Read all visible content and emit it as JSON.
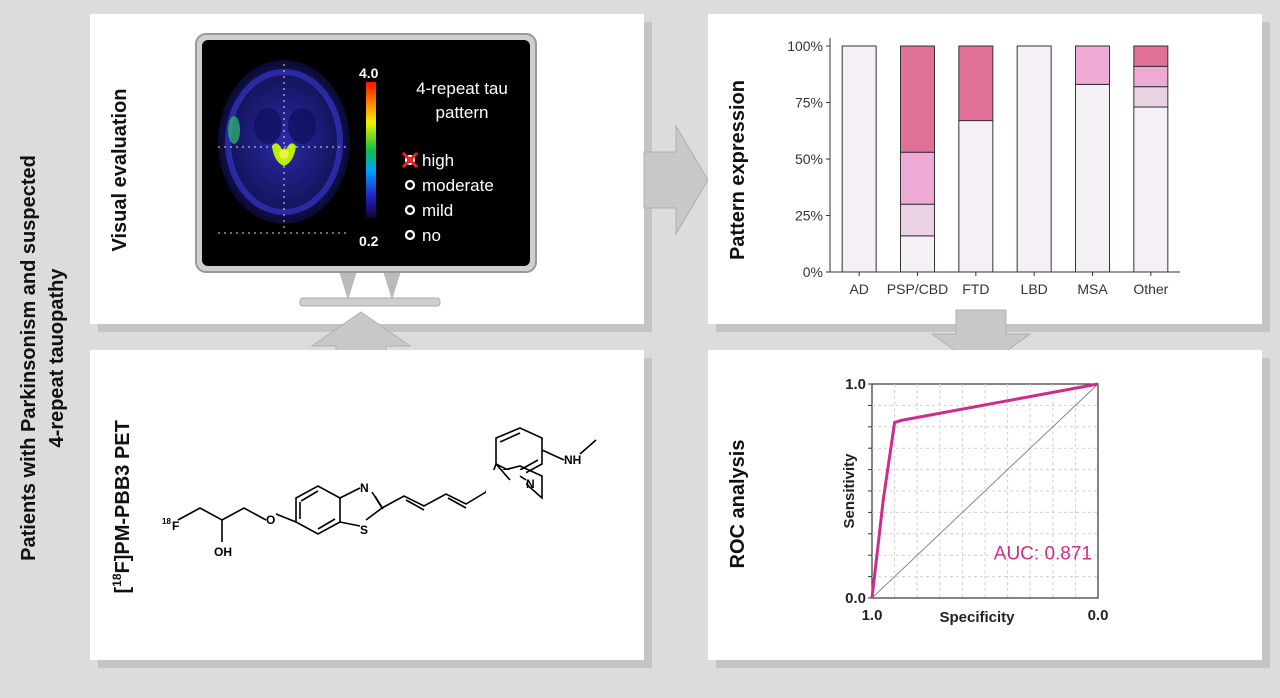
{
  "side_label": {
    "line1": "Patients with Parkinsonism and  suspected",
    "line2": "4-repeat tauopathy"
  },
  "panels": {
    "visual": {
      "title": "Visual evaluation"
    },
    "pet": {
      "title_pre": "[",
      "title_sup": "18",
      "title_post": "F]PM-PBB3 PET"
    },
    "pattern": {
      "title": "Pattern expression"
    },
    "roc": {
      "title": "ROC analysis"
    }
  },
  "monitor": {
    "scale_max": "4.0",
    "scale_min": "0.2",
    "legend_title_1": "4-repeat tau",
    "legend_title_2": "pattern",
    "options": [
      "high",
      "moderate",
      "mild",
      "no"
    ],
    "selected_option": "high"
  },
  "molecule": {
    "atom_N_thiazole": "N",
    "atom_S": "S",
    "atom_O": "O",
    "atom_OH": "OH",
    "atom_F_sup": "18",
    "atom_F": "F",
    "atom_N_pyridine": "N",
    "atom_NH": "NH"
  },
  "chart_data": [
    {
      "type": "bar",
      "stacked": true,
      "categories": [
        "AD",
        "PSP/CBD",
        "FTD",
        "LBD",
        "MSA",
        "Other"
      ],
      "series": [
        {
          "color": "#f4f0f6",
          "values": [
            100,
            16,
            67,
            100,
            83,
            73
          ]
        },
        {
          "color": "#e8d2e4",
          "values": [
            0,
            14,
            0,
            0,
            0,
            9
          ]
        },
        {
          "color": "#eeaad4",
          "values": [
            0,
            23,
            0,
            0,
            17,
            9
          ]
        },
        {
          "color": "#e07098",
          "values": [
            0,
            47,
            33,
            0,
            0,
            9
          ]
        }
      ],
      "ylabel": "Pattern expression",
      "yticks": [
        "0%",
        "25%",
        "50%",
        "75%",
        "100%"
      ],
      "ylim": [
        0,
        100
      ]
    },
    {
      "type": "line",
      "xlabel": "Specificity",
      "ylabel": "Sensitivity",
      "x_reversed": true,
      "xticks": [
        "1.0",
        "0.0"
      ],
      "yticks": [
        "0.0",
        "1.0"
      ],
      "series": [
        {
          "color": "#cc2d8a",
          "x": [
            1.0,
            0.95,
            0.9,
            0.87,
            0.0
          ],
          "y": [
            0.0,
            0.46,
            0.82,
            0.83,
            1.0
          ]
        }
      ],
      "reference_line": true,
      "grid": true,
      "annotation": "AUC: 0.871"
    }
  ]
}
